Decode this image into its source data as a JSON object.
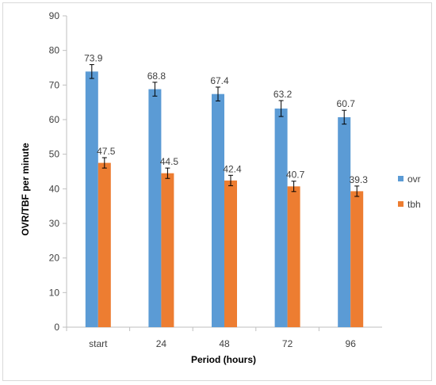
{
  "chart_data": {
    "type": "bar",
    "xlabel": "Period (hours)",
    "ylabel": "OVR/TBF per minute",
    "ylim": [
      0,
      90
    ],
    "yticks": [
      0,
      10,
      20,
      30,
      40,
      50,
      60,
      70,
      80,
      90
    ],
    "categories": [
      "start",
      "24",
      "48",
      "72",
      "96"
    ],
    "series": [
      {
        "name": "ovr",
        "color": "#5b9bd5",
        "values": [
          73.9,
          68.8,
          67.4,
          63.2,
          60.7
        ],
        "errors": [
          2.0,
          2.0,
          2.0,
          2.3,
          2.0
        ],
        "labels": [
          "73.9",
          "68.8",
          "67.4",
          "63.2",
          "60.7"
        ]
      },
      {
        "name": "tbh",
        "color": "#ed7d31",
        "values": [
          47.5,
          44.5,
          42.4,
          40.7,
          39.3
        ],
        "errors": [
          1.5,
          1.5,
          1.5,
          1.5,
          1.5
        ],
        "labels": [
          "47.5",
          "44.5",
          "42.4",
          "40.7",
          "39.3"
        ]
      }
    ],
    "legend_position": "right",
    "grid": false
  }
}
